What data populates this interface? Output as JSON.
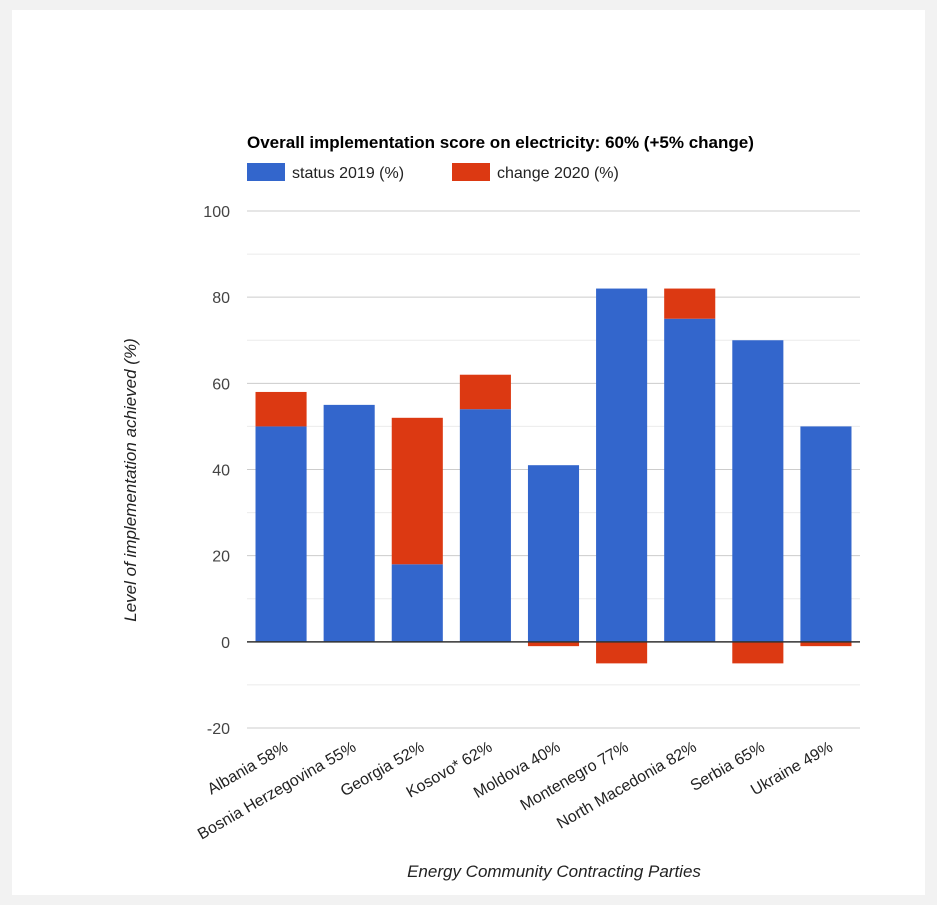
{
  "chart_data": {
    "type": "bar",
    "stacked": true,
    "title": "Overall implementation score on electricity: 60% (+5% change)",
    "xlabel": "Energy Community Contracting Parties",
    "ylabel": "Level of implementation achieved (%)",
    "ylim": [
      -20,
      100
    ],
    "yticks": [
      -20,
      0,
      20,
      40,
      60,
      80,
      100
    ],
    "grid": true,
    "legend_position": "top-left",
    "categories": [
      "Albania 58%",
      "Bosnia Herzegovina 55%",
      "Georgia 52%",
      "Kosovo* 62%",
      "Moldova 40%",
      "Montenegro 77%",
      "North Macedonia 82%",
      "Serbia 65%",
      "Ukraine 49%"
    ],
    "series": [
      {
        "name": "status 2019 (%)",
        "color": "#3366cc",
        "values": [
          50,
          55,
          18,
          54,
          41,
          82,
          75,
          70,
          50
        ]
      },
      {
        "name": "change 2020 (%)",
        "color": "#dc3912",
        "values": [
          8,
          0,
          34,
          8,
          -1,
          -5,
          7,
          -5,
          -1
        ]
      }
    ]
  }
}
